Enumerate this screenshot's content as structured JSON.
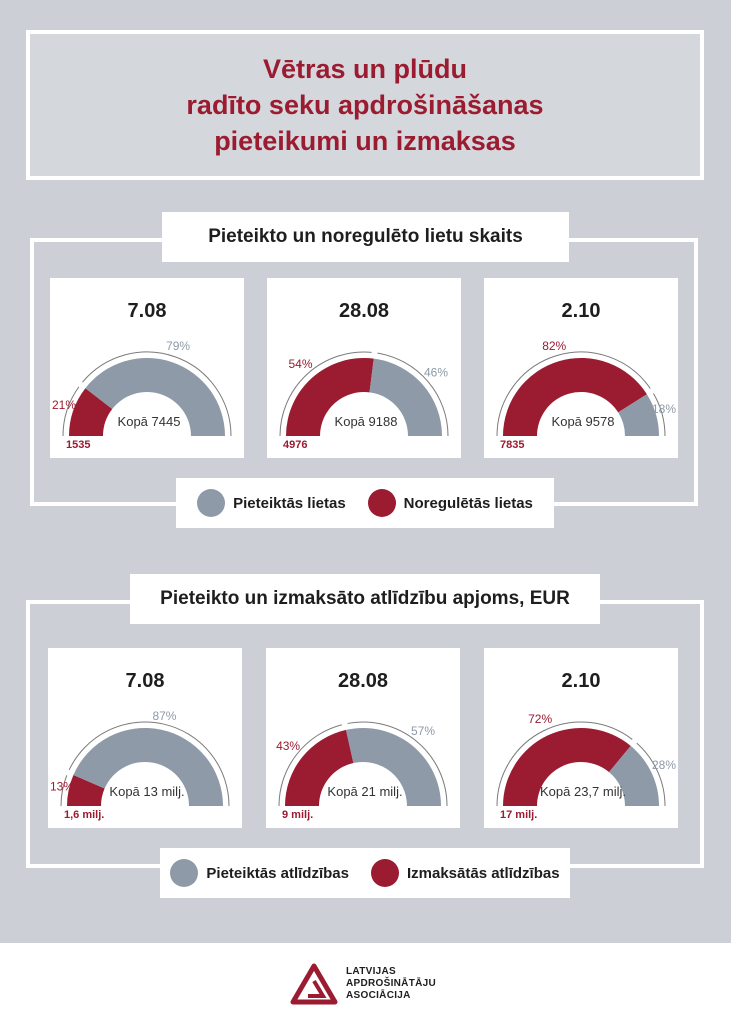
{
  "title": {
    "lines": [
      "Vētras un plūdu",
      "radīto seku apdrošināšanas",
      "pieteikumi un izmaksas"
    ]
  },
  "sections": [
    {
      "title": "Pieteikto un noregulēto lietu skaits",
      "legend": [
        {
          "label": "Pieteiktās lietas",
          "color": "#8e9aa8"
        },
        {
          "label": "Noregulētās lietas",
          "color": "#9b1b30"
        }
      ]
    },
    {
      "title": "Pieteikto un izmaksāto atlīdzību apjoms, EUR",
      "legend": [
        {
          "label": "Pieteiktās atlīdzības",
          "color": "#8e9aa8"
        },
        {
          "label": "Izmaksātās atlīdzības",
          "color": "#9b1b30"
        }
      ]
    }
  ],
  "chart_data": [
    {
      "type": "pie",
      "date": "7.08",
      "total_label": "Kopā 7445",
      "settled_pct": 21,
      "reported_pct": 79,
      "settled_pct_label": "21%",
      "reported_pct_label": "79%",
      "settled_value_label": "1535"
    },
    {
      "type": "pie",
      "date": "28.08",
      "total_label": "Kopā 9188",
      "settled_pct": 54,
      "reported_pct": 46,
      "settled_pct_label": "54%",
      "reported_pct_label": "46%",
      "settled_value_label": "4976"
    },
    {
      "type": "pie",
      "date": "2.10",
      "total_label": "Kopā 9578",
      "settled_pct": 82,
      "reported_pct": 18,
      "settled_pct_label": "82%",
      "reported_pct_label": "18%",
      "settled_value_label": "7835"
    },
    {
      "type": "pie",
      "date": "7.08",
      "total_label": "Kopā 13 milj.",
      "settled_pct": 13,
      "reported_pct": 87,
      "settled_pct_label": "13%",
      "reported_pct_label": "87%",
      "settled_value_label": "1,6 milj."
    },
    {
      "type": "pie",
      "date": "28.08",
      "total_label": "Kopā 21 milj.",
      "settled_pct": 43,
      "reported_pct": 57,
      "settled_pct_label": "43%",
      "reported_pct_label": "57%",
      "settled_value_label": "9 milj."
    },
    {
      "type": "pie",
      "date": "2.10",
      "total_label": "Kopā 23,7 milj.",
      "settled_pct": 72,
      "reported_pct": 28,
      "settled_pct_label": "72%",
      "reported_pct_label": "28%",
      "settled_value_label": "17 milj."
    }
  ],
  "colors": {
    "settled": "#9b1b30",
    "reported": "#8e9aa8"
  },
  "footer": {
    "logo_lines": [
      "LATVIJAS",
      "APDROŠINĀTĀJU",
      "ASOCIĀCIJA"
    ],
    "logo_icon": "triangle-g-logo-icon"
  }
}
